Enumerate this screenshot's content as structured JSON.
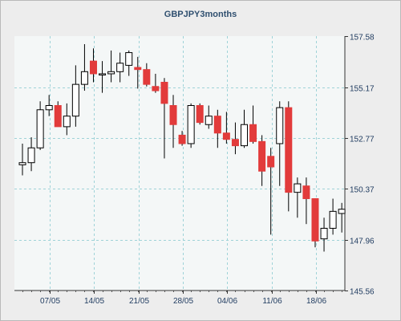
{
  "chart_data": {
    "type": "candlestick",
    "title": "GBPJPY3months",
    "y_axis": {
      "position": "right",
      "ticks": [
        157.58,
        155.17,
        152.77,
        150.37,
        147.96,
        145.56
      ],
      "ylim": [
        145.56,
        157.58
      ]
    },
    "x_axis": {
      "ticks": [
        "07/05",
        "14/05",
        "21/05",
        "28/05",
        "04/06",
        "11/06",
        "18/06"
      ]
    },
    "grid": true,
    "colors": {
      "up": "#ffffff",
      "down": "#e23b3b",
      "wick": "#000000",
      "grid": "#9fd3d8",
      "plot_bg": "#f4f7f7"
    },
    "candles": [
      {
        "o": 151.5,
        "h": 152.5,
        "l": 151.0,
        "c": 151.6
      },
      {
        "o": 151.6,
        "h": 152.8,
        "l": 151.2,
        "c": 152.3
      },
      {
        "o": 152.3,
        "h": 154.5,
        "l": 152.2,
        "c": 154.1
      },
      {
        "o": 154.1,
        "h": 154.8,
        "l": 153.8,
        "c": 154.3
      },
      {
        "o": 154.3,
        "h": 154.5,
        "l": 153.3,
        "c": 153.3
      },
      {
        "o": 153.3,
        "h": 154.4,
        "l": 152.9,
        "c": 153.8
      },
      {
        "o": 153.8,
        "h": 156.2,
        "l": 153.3,
        "c": 155.3
      },
      {
        "o": 155.3,
        "h": 157.2,
        "l": 155.0,
        "c": 155.9
      },
      {
        "o": 156.4,
        "h": 157.0,
        "l": 155.4,
        "c": 155.8
      },
      {
        "o": 155.8,
        "h": 156.4,
        "l": 154.9,
        "c": 155.8
      },
      {
        "o": 155.8,
        "h": 156.9,
        "l": 155.4,
        "c": 155.9
      },
      {
        "o": 155.9,
        "h": 156.8,
        "l": 155.4,
        "c": 156.3
      },
      {
        "o": 156.2,
        "h": 156.9,
        "l": 155.7,
        "c": 156.8
      },
      {
        "o": 156.1,
        "h": 156.6,
        "l": 155.1,
        "c": 156.0
      },
      {
        "o": 156.0,
        "h": 156.3,
        "l": 155.2,
        "c": 155.3
      },
      {
        "o": 155.2,
        "h": 155.8,
        "l": 154.9,
        "c": 155.0
      },
      {
        "o": 155.4,
        "h": 155.6,
        "l": 151.8,
        "c": 154.4
      },
      {
        "o": 154.3,
        "h": 154.8,
        "l": 152.3,
        "c": 153.4
      },
      {
        "o": 152.9,
        "h": 153.1,
        "l": 152.4,
        "c": 152.5
      },
      {
        "o": 152.5,
        "h": 154.4,
        "l": 152.3,
        "c": 154.3
      },
      {
        "o": 154.3,
        "h": 154.4,
        "l": 153.4,
        "c": 153.5
      },
      {
        "o": 153.4,
        "h": 154.3,
        "l": 153.2,
        "c": 153.8
      },
      {
        "o": 153.8,
        "h": 154.1,
        "l": 152.3,
        "c": 153.0
      },
      {
        "o": 153.0,
        "h": 154.0,
        "l": 152.5,
        "c": 152.7
      },
      {
        "o": 152.7,
        "h": 153.5,
        "l": 152.0,
        "c": 152.4
      },
      {
        "o": 152.4,
        "h": 154.1,
        "l": 152.3,
        "c": 153.4
      },
      {
        "o": 153.4,
        "h": 154.3,
        "l": 152.5,
        "c": 152.6
      },
      {
        "o": 152.6,
        "h": 152.9,
        "l": 150.5,
        "c": 151.2
      },
      {
        "o": 151.9,
        "h": 152.3,
        "l": 148.2,
        "c": 151.4
      },
      {
        "o": 152.5,
        "h": 154.5,
        "l": 150.5,
        "c": 154.2
      },
      {
        "o": 154.2,
        "h": 154.5,
        "l": 149.3,
        "c": 150.2
      },
      {
        "o": 150.2,
        "h": 150.9,
        "l": 149.0,
        "c": 150.6
      },
      {
        "o": 150.5,
        "h": 150.9,
        "l": 148.7,
        "c": 149.9
      },
      {
        "o": 149.9,
        "h": 149.9,
        "l": 147.6,
        "c": 147.9
      },
      {
        "o": 148.0,
        "h": 149.0,
        "l": 147.4,
        "c": 148.5
      },
      {
        "o": 148.5,
        "h": 149.9,
        "l": 148.2,
        "c": 149.3
      },
      {
        "o": 149.2,
        "h": 149.7,
        "l": 148.3,
        "c": 149.4
      }
    ]
  }
}
